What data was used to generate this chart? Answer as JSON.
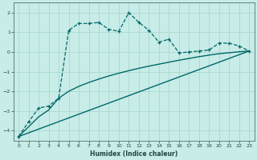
{
  "xlabel": "Humidex (Indice chaleur)",
  "bg_color": "#c8ece8",
  "grid_color": "#a8d8d0",
  "line_color": "#006868",
  "xlim": [
    -0.5,
    23.5
  ],
  "ylim": [
    -4.5,
    2.5
  ],
  "xticks": [
    0,
    1,
    2,
    3,
    4,
    5,
    6,
    7,
    8,
    9,
    10,
    11,
    12,
    13,
    14,
    15,
    16,
    17,
    18,
    19,
    20,
    21,
    22,
    23
  ],
  "yticks": [
    -4,
    -3,
    -2,
    -1,
    0,
    1,
    2
  ],
  "curve1_x": [
    0,
    1,
    2,
    3,
    4,
    5,
    6,
    7,
    8,
    9,
    10,
    11,
    12,
    13,
    14,
    15,
    16,
    17,
    18,
    19,
    20,
    21,
    22,
    23
  ],
  "curve1_y": [
    -4.3,
    -3.55,
    -2.85,
    -2.75,
    -2.35,
    1.1,
    1.45,
    1.45,
    1.5,
    1.15,
    1.05,
    2.0,
    1.5,
    1.1,
    0.5,
    0.65,
    -0.05,
    0.0,
    0.05,
    0.1,
    0.45,
    0.45,
    0.3,
    0.05
  ],
  "curve2_x": [
    0,
    23
  ],
  "curve2_y": [
    -4.3,
    0.05
  ],
  "curve3_x": [
    0,
    1,
    2,
    3,
    4,
    5,
    6,
    7,
    8,
    9,
    10,
    11,
    12,
    13,
    14,
    15,
    16,
    17,
    18,
    19,
    20,
    21,
    22,
    23
  ],
  "curve3_y": [
    -4.3,
    -3.8,
    -3.3,
    -2.95,
    -2.35,
    -2.0,
    -1.75,
    -1.55,
    -1.38,
    -1.22,
    -1.08,
    -0.95,
    -0.83,
    -0.72,
    -0.62,
    -0.52,
    -0.42,
    -0.33,
    -0.24,
    -0.16,
    -0.09,
    -0.04,
    0.01,
    0.05
  ]
}
